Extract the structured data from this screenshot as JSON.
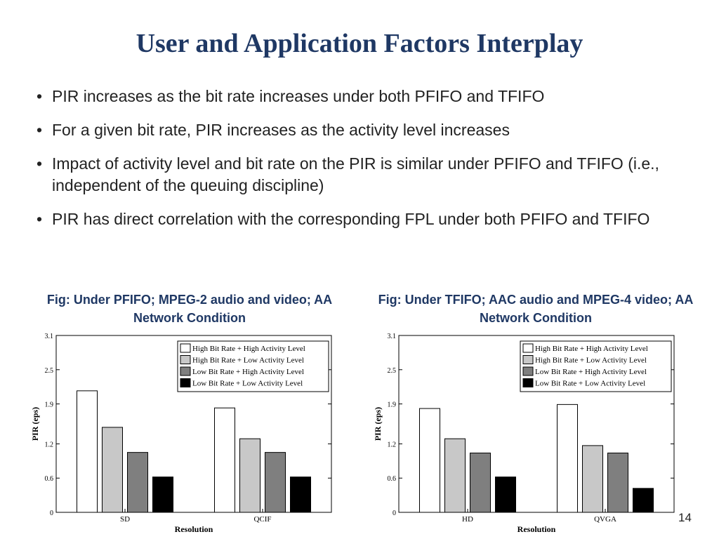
{
  "slide": {
    "title": "User and Application Factors Interplay",
    "bullets": [
      "PIR increases as the bit rate increases under both PFIFO and TFIFO",
      "For a given bit rate, PIR increases as the activity level increases",
      "Impact of activity level and bit rate on the PIR is similar under PFIFO and TFIFO  (i.e., independent of the queuing discipline)",
      "PIR has direct correlation with the corresponding FPL under both PFIFO and TFIFO"
    ],
    "captions": [
      "Fig: Under PFIFO; MPEG-2 audio and video; AA Network Condition",
      "Fig: Under TFIFO; AAC audio and MPEG-4 video; AA Network Condition"
    ],
    "page_number": "14"
  },
  "colors": {
    "title": "#1f3864",
    "series": [
      "#ffffff",
      "#c8c8c8",
      "#7f7f7f",
      "#000000"
    ]
  },
  "chart_data": [
    {
      "type": "bar",
      "xlabel": "Resolution",
      "ylabel": "PIR (eps)",
      "ylim": [
        0,
        3.1
      ],
      "yticks": [
        "0",
        "0.6",
        "1.2",
        "1.9",
        "2.5",
        "3.1"
      ],
      "categories": [
        "SD",
        "QCIF"
      ],
      "legend_position": "top-right",
      "series": [
        {
          "name": "High Bit Rate + High Activity Level",
          "values": [
            2.13,
            1.83
          ]
        },
        {
          "name": "High Bit Rate + Low Activity Level",
          "values": [
            1.49,
            1.29
          ]
        },
        {
          "name": "Low Bit Rate + High Activity Level",
          "values": [
            1.05,
            1.05
          ]
        },
        {
          "name": "Low Bit Rate + Low Activity Level",
          "values": [
            0.62,
            0.62
          ]
        }
      ]
    },
    {
      "type": "bar",
      "xlabel": "Resolution",
      "ylabel": "PIR (eps)",
      "ylim": [
        0,
        3.1
      ],
      "yticks": [
        "0",
        "0.6",
        "1.2",
        "1.9",
        "2.5",
        "3.1"
      ],
      "categories": [
        "HD",
        "QVGA"
      ],
      "legend_position": "top-right",
      "series": [
        {
          "name": "High Bit Rate + High Activity Level",
          "values": [
            1.82,
            1.89
          ]
        },
        {
          "name": "High Bit Rate + Low Activity Level",
          "values": [
            1.29,
            1.17
          ]
        },
        {
          "name": "Low Bit Rate + High Activity Level",
          "values": [
            1.04,
            1.04
          ]
        },
        {
          "name": "Low Bit Rate + Low Activity Level",
          "values": [
            0.62,
            0.42
          ]
        }
      ]
    }
  ]
}
